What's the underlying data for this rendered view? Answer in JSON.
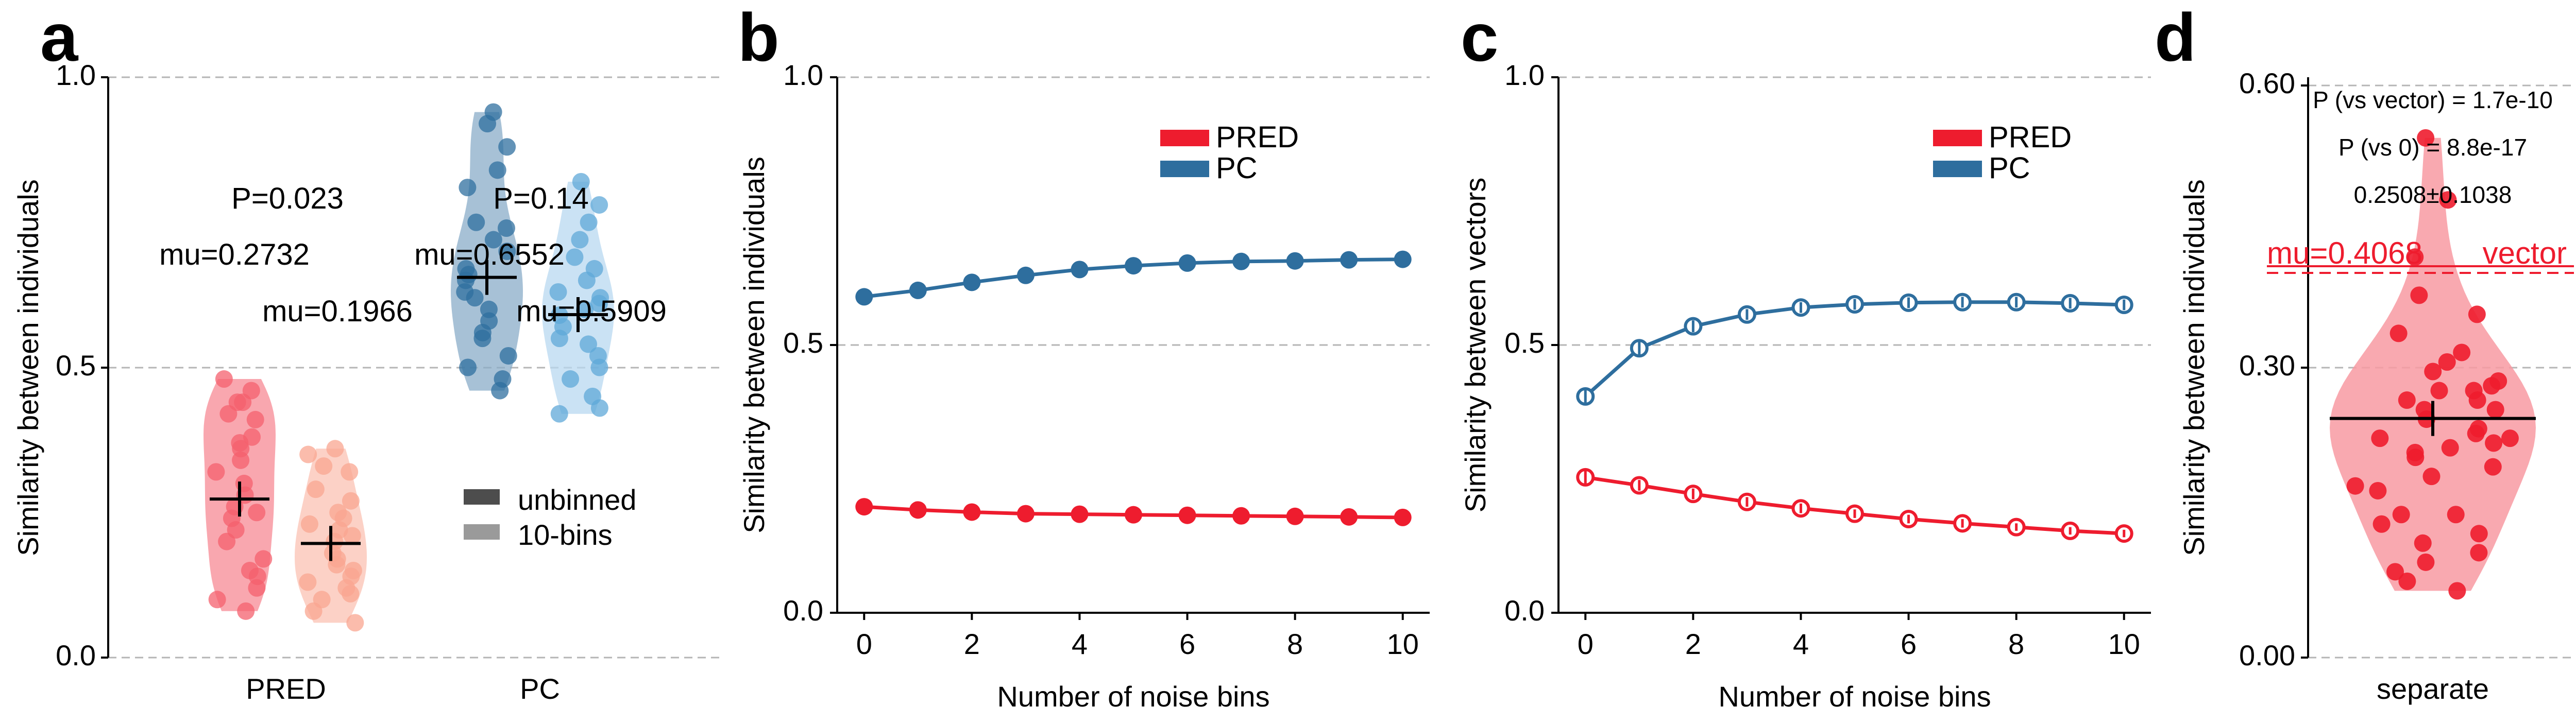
{
  "chart_data": [
    {
      "panel_label": "a",
      "type": "scatter",
      "ylabel": "Similarity between individuals",
      "ylim": [
        0,
        1
      ],
      "yticks": [
        "0.0",
        "0.5",
        "1.0"
      ],
      "grid": "horizontal dashed at ticks",
      "categories": [
        "PRED",
        "PC"
      ],
      "legend": {
        "placement": "center-right",
        "entries": [
          {
            "label": "unbinned",
            "color": "#4d4d4d"
          },
          {
            "label": "10-bins",
            "color": "#9a9a9a"
          }
        ]
      },
      "series": [
        {
          "category": "PRED",
          "condition": "unbinned",
          "color": "#f4606e",
          "violin_color": "#f78a94",
          "mean": 0.2732,
          "values": [
            0.48,
            0.46,
            0.44,
            0.44,
            0.42,
            0.41,
            0.38,
            0.37,
            0.36,
            0.34,
            0.32,
            0.3,
            0.28,
            0.26,
            0.25,
            0.24,
            0.22,
            0.2,
            0.17,
            0.15,
            0.14,
            0.12,
            0.1,
            0.08
          ]
        },
        {
          "category": "PRED",
          "condition": "10-bins",
          "color": "#f9a590",
          "violin_color": "#fbc1b3",
          "mean": 0.1966,
          "values": [
            0.36,
            0.35,
            0.33,
            0.32,
            0.29,
            0.27,
            0.25,
            0.24,
            0.23,
            0.22,
            0.21,
            0.2,
            0.18,
            0.17,
            0.16,
            0.15,
            0.14,
            0.13,
            0.12,
            0.11,
            0.1,
            0.08,
            0.06
          ]
        },
        {
          "category": "PC",
          "condition": "unbinned",
          "color": "#2f6f9f",
          "violin_color": "#8aacc8",
          "mean": 0.6552,
          "values": [
            0.94,
            0.92,
            0.88,
            0.84,
            0.81,
            0.75,
            0.74,
            0.72,
            0.7,
            0.67,
            0.66,
            0.65,
            0.63,
            0.62,
            0.6,
            0.58,
            0.56,
            0.55,
            0.52,
            0.5,
            0.48,
            0.46
          ]
        },
        {
          "category": "PC",
          "condition": "10-bins",
          "color": "#5fa8d8",
          "violin_color": "#b8d8f0",
          "mean": 0.5909,
          "values": [
            0.82,
            0.78,
            0.75,
            0.72,
            0.69,
            0.67,
            0.65,
            0.63,
            0.62,
            0.61,
            0.6,
            0.59,
            0.57,
            0.55,
            0.54,
            0.52,
            0.5,
            0.48,
            0.45,
            0.43,
            0.42
          ]
        }
      ],
      "annotations": [
        {
          "text": "P=0.023",
          "group": "PRED"
        },
        {
          "text": "mu=0.2732",
          "group": "PRED unbinned"
        },
        {
          "text": "mu=0.1966",
          "group": "PRED 10-bins"
        },
        {
          "text": "P=0.14",
          "group": "PC"
        },
        {
          "text": "mu=0.6552",
          "group": "PC unbinned"
        },
        {
          "text": "mu=0.5909",
          "group": "PC 10-bins"
        }
      ]
    },
    {
      "panel_label": "b",
      "type": "line",
      "xlabel": "Number of noise bins",
      "ylabel": "Similarity between individuals",
      "xlim": [
        -0.5,
        10.5
      ],
      "ylim": [
        0,
        1
      ],
      "xticks": [
        0,
        2,
        4,
        6,
        8,
        10
      ],
      "yticks": [
        "0.0",
        "0.5",
        "1.0"
      ],
      "grid": "horizontal dashed at ticks",
      "legend": {
        "placement": "top-right"
      },
      "x": [
        0,
        1,
        2,
        3,
        4,
        5,
        6,
        7,
        8,
        9,
        10
      ],
      "series": [
        {
          "name": "PRED",
          "color": "#ee1c2e",
          "values": [
            0.198,
            0.192,
            0.188,
            0.185,
            0.184,
            0.183,
            0.182,
            0.181,
            0.18,
            0.179,
            0.178
          ]
        },
        {
          "name": "PC",
          "color": "#2e6e9e",
          "values": [
            0.59,
            0.602,
            0.617,
            0.63,
            0.641,
            0.648,
            0.653,
            0.656,
            0.657,
            0.659,
            0.66
          ]
        }
      ]
    },
    {
      "panel_label": "c",
      "type": "line",
      "xlabel": "Number of noise bins",
      "ylabel": "Similarity between vectors",
      "xlim": [
        -0.5,
        10.5
      ],
      "ylim": [
        0,
        1
      ],
      "xticks": [
        0,
        2,
        4,
        6,
        8,
        10
      ],
      "yticks": [
        "0.0",
        "0.5",
        "1.0"
      ],
      "grid": "horizontal dashed at ticks",
      "legend": {
        "placement": "top-right"
      },
      "markers": "open circles with error bars",
      "x": [
        0,
        1,
        2,
        3,
        4,
        5,
        6,
        7,
        8,
        9,
        10
      ],
      "series": [
        {
          "name": "PRED",
          "color": "#ee1c2e",
          "values": [
            0.253,
            0.238,
            0.222,
            0.207,
            0.195,
            0.185,
            0.175,
            0.167,
            0.16,
            0.153,
            0.148
          ],
          "error": [
            0.012,
            0.01,
            0.01,
            0.009,
            0.009,
            0.008,
            0.008,
            0.008,
            0.007,
            0.007,
            0.007
          ]
        },
        {
          "name": "PC",
          "color": "#2e6e9e",
          "values": [
            0.404,
            0.494,
            0.535,
            0.557,
            0.57,
            0.576,
            0.579,
            0.58,
            0.58,
            0.578,
            0.575
          ],
          "error": [
            0.014,
            0.012,
            0.011,
            0.01,
            0.01,
            0.01,
            0.01,
            0.01,
            0.01,
            0.01,
            0.01
          ]
        }
      ]
    },
    {
      "panel_label": "d",
      "type": "scatter",
      "xlabel": "separate",
      "ylabel": "Similarity between individuals",
      "ylim": [
        0,
        0.6
      ],
      "yticks": [
        "0.00",
        "0.30",
        "0.60"
      ],
      "grid": "horizontal dashed at ticks",
      "color": "#ee1c2e",
      "violin_color": "#f89aa2",
      "mean": 0.2508,
      "reference_line": {
        "value": 0.4068,
        "label": "mu=0.4068",
        "text": "vector"
      },
      "annotations": [
        {
          "text": "P (vs vector) = 1.7e-10"
        },
        {
          "text": "P (vs 0) = 8.8e-17"
        },
        {
          "text": "0.2508±0.1038"
        }
      ],
      "values": [
        0.545,
        0.48,
        0.42,
        0.38,
        0.36,
        0.34,
        0.32,
        0.31,
        0.3,
        0.29,
        0.285,
        0.28,
        0.28,
        0.27,
        0.27,
        0.26,
        0.26,
        0.25,
        0.24,
        0.235,
        0.23,
        0.23,
        0.225,
        0.22,
        0.215,
        0.21,
        0.2,
        0.19,
        0.18,
        0.175,
        0.15,
        0.15,
        0.14,
        0.13,
        0.12,
        0.11,
        0.1,
        0.09,
        0.08,
        0.07
      ]
    }
  ]
}
